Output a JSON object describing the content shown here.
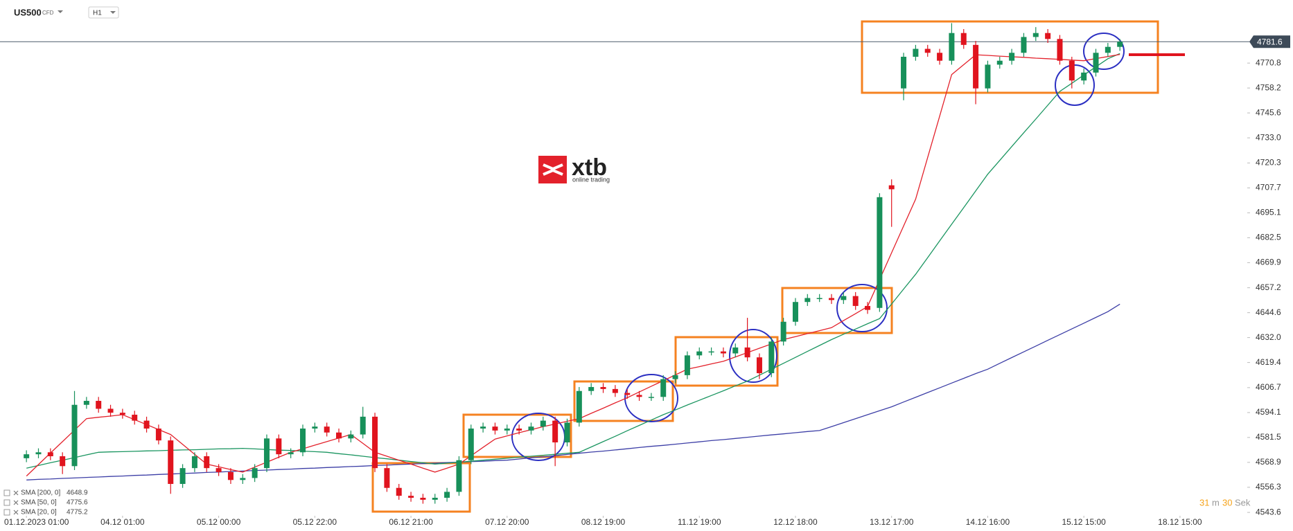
{
  "header": {
    "symbol": "US500",
    "instrument_type": "CFD",
    "timeframe": "H1"
  },
  "watermark": {
    "brand": "xtb",
    "tagline": "online trading"
  },
  "timer": {
    "minutes": 31,
    "minutes_unit": "m",
    "seconds": 30,
    "seconds_unit": "Sek"
  },
  "chart_data": {
    "type": "candlestick",
    "up_color": "#17905a",
    "down_color": "#e0141e",
    "open": [
      4571,
      4573,
      4574,
      4572,
      4567,
      4598,
      4600,
      4596,
      4594,
      4593,
      4590,
      4586,
      4580,
      4558,
      4566,
      4572,
      4566,
      4564,
      4560,
      4561,
      4566,
      4581,
      4573,
      4574,
      4586,
      4587,
      4584,
      4581,
      4583,
      4592,
      4566,
      4556,
      4552,
      4551,
      4550,
      4551,
      4554,
      4570,
      4586,
      4587,
      4585,
      4586,
      4585,
      4587,
      4590,
      4579,
      4589,
      4605,
      4607,
      4606,
      4604,
      4603,
      4602,
      4602,
      4611,
      4613,
      4623,
      4625,
      4625,
      4624,
      4627,
      4622,
      4614,
      4630,
      4640,
      4650,
      4652,
      4652,
      4651,
      4653,
      4648,
      4647,
      4709,
      4758,
      4774,
      4778,
      4776,
      4772,
      4786,
      4780,
      4758,
      4770,
      4772,
      4776,
      4784,
      4786,
      4783,
      4772,
      4762,
      4766,
      4776,
      4779
    ],
    "high": [
      4575,
      4576,
      4576,
      4574,
      4605,
      4602,
      4602,
      4598,
      4596,
      4595,
      4592,
      4588,
      4582,
      4568,
      4574,
      4574,
      4568,
      4566,
      4563,
      4568,
      4583,
      4583,
      4576,
      4588,
      4589,
      4589,
      4586,
      4585,
      4597,
      4594,
      4568,
      4558,
      4554,
      4553,
      4553,
      4556,
      4572,
      4588,
      4589,
      4589,
      4588,
      4588,
      4589,
      4592,
      4592,
      4591,
      4607,
      4609,
      4609,
      4608,
      4606,
      4605,
      4604,
      4613,
      4615,
      4625,
      4627,
      4627,
      4627,
      4629,
      4642,
      4624,
      4632,
      4642,
      4652,
      4654,
      4654,
      4654,
      4655,
      4655,
      4650,
      4705,
      4712,
      4776,
      4780,
      4780,
      4778,
      4791,
      4788,
      4782,
      4772,
      4774,
      4778,
      4786,
      4789,
      4788,
      4785,
      4774,
      4768,
      4778,
      4781,
      4783
    ],
    "low": [
      4569,
      4571,
      4570,
      4563,
      4565,
      4596,
      4594,
      4592,
      4591,
      4588,
      4584,
      4578,
      4553,
      4556,
      4564,
      4564,
      4562,
      4558,
      4558,
      4559,
      4564,
      4571,
      4571,
      4572,
      4584,
      4582,
      4579,
      4579,
      4581,
      4564,
      4554,
      4550,
      4549,
      4548,
      4548,
      4549,
      4552,
      4568,
      4584,
      4583,
      4583,
      4583,
      4583,
      4585,
      4567,
      4577,
      4587,
      4603,
      4604,
      4602,
      4601,
      4600,
      4600,
      4600,
      4609,
      4611,
      4621,
      4623,
      4622,
      4622,
      4620,
      4611,
      4612,
      4628,
      4638,
      4648,
      4650,
      4649,
      4649,
      4646,
      4644,
      4645,
      4688,
      4752,
      4772,
      4774,
      4770,
      4770,
      4778,
      4750,
      4756,
      4768,
      4770,
      4774,
      4782,
      4781,
      4770,
      4758,
      4760,
      4764,
      4774,
      4777
    ],
    "close": [
      4573,
      4574,
      4572,
      4567,
      4598,
      4600,
      4596,
      4594,
      4593,
      4590,
      4586,
      4580,
      4558,
      4566,
      4572,
      4566,
      4564,
      4560,
      4561,
      4566,
      4581,
      4573,
      4574,
      4586,
      4587,
      4584,
      4581,
      4583,
      4592,
      4566,
      4556,
      4552,
      4551,
      4550,
      4551,
      4554,
      4570,
      4586,
      4587,
      4585,
      4586,
      4585,
      4587,
      4590,
      4579,
      4589,
      4605,
      4607,
      4606,
      4604,
      4603,
      4602,
      4602,
      4611,
      4613,
      4623,
      4625,
      4625,
      4624,
      4627,
      4622,
      4614,
      4630,
      4640,
      4650,
      4652,
      4652,
      4651,
      4653,
      4648,
      4646,
      4703,
      4707,
      4774,
      4778,
      4776,
      4772,
      4786,
      4780,
      4758,
      4770,
      4772,
      4776,
      4784,
      4786,
      4783,
      4772,
      4762,
      4766,
      4776,
      4779,
      4781.6
    ],
    "series": [
      {
        "name": "SMA [200, 0]",
        "color": "#3c3ea6",
        "last_value": 4648.9,
        "values": [
          4560,
          4560.3,
          4560.5,
          4560.8,
          4561,
          4561.3,
          4561.5,
          4561.8,
          4562,
          4562.3,
          4562.5,
          4562.8,
          4563,
          4563.3,
          4563.5,
          4563.8,
          4564,
          4564.3,
          4564.5,
          4564.8,
          4565,
          4565.3,
          4565.5,
          4565.8,
          4566,
          4566.3,
          4566.5,
          4566.8,
          4567,
          4567.3,
          4567.5,
          4567.8,
          4568,
          4568.3,
          4568.5,
          4568.8,
          4569,
          4569.3,
          4569.5,
          4569.8,
          4570,
          4570.6,
          4571.2,
          4571.7,
          4572.3,
          4572.9,
          4573.5,
          4574.1,
          4574.6,
          4575.2,
          4575.8,
          4576.4,
          4577,
          4577.5,
          4578.1,
          4578.7,
          4579.3,
          4579.9,
          4580.4,
          4581,
          4581.6,
          4582.2,
          4582.8,
          4583.3,
          4583.9,
          4584.5,
          4585,
          4587,
          4589,
          4591,
          4593,
          4595,
          4597,
          4599.4,
          4601.8,
          4604.2,
          4606.6,
          4609,
          4611.4,
          4613.8,
          4616,
          4619,
          4621.9,
          4624.8,
          4627.7,
          4630.6,
          4633.5,
          4636.4,
          4639.3,
          4642.2,
          4645.1,
          4648.9
        ]
      },
      {
        "name": "SMA [50, 0]",
        "color": "#1a9560",
        "last_value": 4775.6,
        "values": [
          4566,
          4567.3,
          4568.7,
          4570,
          4571.3,
          4572.7,
          4574,
          4574.2,
          4574.3,
          4574.5,
          4574.7,
          4574.8,
          4575,
          4575.2,
          4575.3,
          4575.5,
          4575.7,
          4575.8,
          4576,
          4575.7,
          4575.4,
          4575.1,
          4574.9,
          4574.6,
          4574.3,
          4574,
          4573.3,
          4572.7,
          4572,
          4571.3,
          4570.7,
          4570,
          4569.3,
          4568.7,
          4568,
          4568.5,
          4569,
          4569.5,
          4570,
          4570.5,
          4571,
          4571.5,
          4572,
          4572.5,
          4573,
          4573.5,
          4574,
          4576.7,
          4579.4,
          4582.1,
          4584.9,
          4587.6,
          4590.3,
          4593,
          4595.4,
          4597.9,
          4600.3,
          4602.7,
          4605.1,
          4607.6,
          4610,
          4613,
          4616,
          4619,
          4622,
          4625,
          4628,
          4631,
          4633.7,
          4636.3,
          4639,
          4641.6,
          4649,
          4656.5,
          4664,
          4672.4,
          4680.9,
          4689.3,
          4697.7,
          4706.2,
          4714.6,
          4721.6,
          4728.6,
          4735.6,
          4742.5,
          4749.5,
          4756.5,
          4760.6,
          4764.8,
          4768.9,
          4773,
          4775.6
        ]
      },
      {
        "name": "SMA [20, 0]",
        "color": "#e3212b",
        "last_value": 4775.2,
        "values": [
          4562,
          4567.8,
          4573.6,
          4579.4,
          4585.2,
          4591,
          4591.7,
          4592.3,
          4593,
          4590.5,
          4588,
          4585.5,
          4583,
          4578,
          4573,
          4568,
          4566.7,
          4565.3,
          4564,
          4566.5,
          4569,
          4571.5,
          4574,
          4575.8,
          4577.6,
          4579.4,
          4581.2,
          4583,
          4578.5,
          4574,
          4572,
          4570,
          4568,
          4566,
          4564,
          4566,
          4568,
          4572.2,
          4576.5,
          4580.7,
          4582.3,
          4583.9,
          4585.4,
          4587,
          4588.3,
          4589.7,
          4591,
          4593.7,
          4596.3,
          4599,
          4601.6,
          4604.5,
          4607.4,
          4610.2,
          4613.1,
          4616,
          4617.3,
          4618.7,
          4620,
          4622.2,
          4624.4,
          4626.6,
          4628.8,
          4631,
          4632.5,
          4634,
          4635.5,
          4637,
          4640.6,
          4644.1,
          4647.7,
          4661.3,
          4674.9,
          4688.4,
          4702,
          4723,
          4744,
          4765,
          4770,
          4775,
          4774.7,
          4774.3,
          4774,
          4773.7,
          4773.3,
          4773,
          4772.7,
          4772.3,
          4772,
          4773.1,
          4774.1,
          4775.2
        ]
      }
    ],
    "current_price": 4781.6,
    "ylim": [
      4541.9,
      4802.7
    ],
    "yticks": [
      4543.6,
      4556.3,
      4568.9,
      4581.5,
      4594.1,
      4606.7,
      4619.4,
      {
        "value": 4632,
        "label": "4632.0"
      },
      4644.6,
      4657.2,
      4669.9,
      4682.5,
      4695.1,
      4707.7,
      4720.3,
      {
        "value": 4733,
        "label": "4733.0"
      },
      4745.6,
      4758.2,
      4770.8
    ],
    "xlim": [
      -2.2,
      101.6
    ],
    "xticks": [
      {
        "value": 0,
        "label": "01.12.2023  01:00"
      },
      {
        "value": 8,
        "label": "04.12  01:00"
      },
      {
        "value": 16,
        "label": "05.12  00:00"
      },
      {
        "value": 24,
        "label": "05.12  22:00"
      },
      {
        "value": 32,
        "label": "06.12  21:00"
      },
      {
        "value": 40,
        "label": "07.12  20:00"
      },
      {
        "value": 48,
        "label": "08.12  19:00"
      },
      {
        "value": 56,
        "label": "11.12  19:00"
      },
      {
        "value": 64,
        "label": "12.12  18:00"
      },
      {
        "value": 72,
        "label": "13.12  17:00"
      },
      {
        "value": 80,
        "label": "14.12  16:00"
      },
      {
        "value": 88,
        "label": "15.12  15:00"
      },
      {
        "value": 96,
        "label": "18.12  15:00"
      }
    ]
  }
}
